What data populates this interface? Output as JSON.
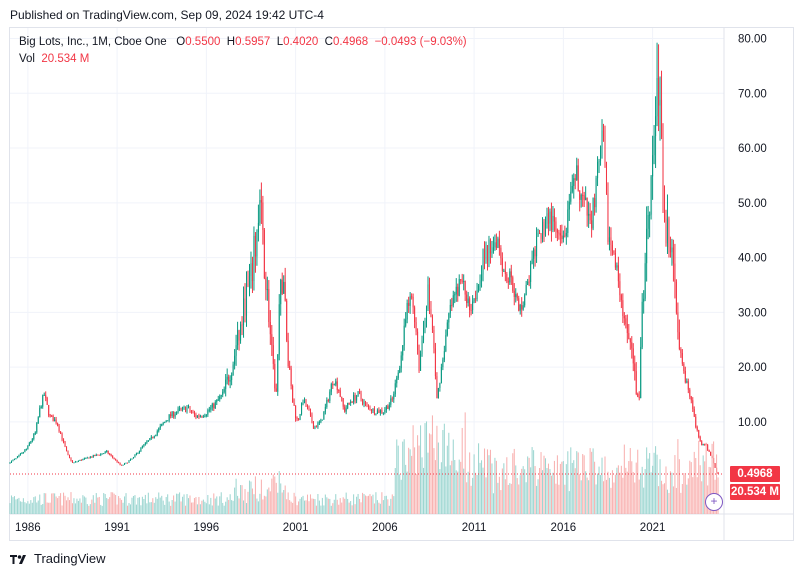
{
  "header": {
    "published": "Published on TradingView.com, Sep 09, 2024 19:42 UTC-4"
  },
  "legend": {
    "symbol": "Big Lots, Inc., 1M, Cboe One",
    "open_label": "O",
    "open": "0.5500",
    "high_label": "H",
    "high": "0.5957",
    "low_label": "L",
    "low": "0.4020",
    "close_label": "C",
    "close": "0.4968",
    "change": "−0.0493 (−9.03%)",
    "vol_label": "Vol",
    "vol_value": "20.534 M"
  },
  "badges": {
    "price": "0.4968",
    "volume": "20.534 M"
  },
  "footer": {
    "brand": "TradingView"
  },
  "colors": {
    "up": "#089981",
    "down": "#f23645",
    "vol_up": "#92d2cc",
    "vol_down": "#f7a9a7",
    "grid": "#f0f3fa"
  },
  "chart_data": {
    "type": "candlestick",
    "interval": "1M",
    "y_axis": {
      "position": "right",
      "min": 0,
      "max": 80,
      "ticks": [
        "10.00",
        "20.00",
        "30.00",
        "40.00",
        "50.00",
        "60.00",
        "70.00",
        "80.00"
      ],
      "tick_values": [
        10,
        20,
        30,
        40,
        50,
        60,
        70,
        80
      ]
    },
    "x_axis": {
      "min": 1985.0,
      "max": 2025.0,
      "ticks": [
        "1986",
        "1991",
        "1996",
        "2001",
        "2006",
        "2011",
        "2016",
        "2021"
      ],
      "tick_values": [
        1986,
        1991,
        1996,
        2001,
        2006,
        2011,
        2016,
        2021
      ]
    },
    "last_price": 0.4968,
    "price_path": [
      [
        1985.0,
        2.5
      ],
      [
        1985.5,
        3.5
      ],
      [
        1986.0,
        5.0
      ],
      [
        1986.5,
        8.0
      ],
      [
        1986.8,
        13.0
      ],
      [
        1987.0,
        15.0
      ],
      [
        1987.3,
        11.0
      ],
      [
        1987.7,
        10.0
      ],
      [
        1988.0,
        7.0
      ],
      [
        1988.3,
        4.0
      ],
      [
        1988.6,
        2.5
      ],
      [
        1989.0,
        3.0
      ],
      [
        1989.5,
        3.5
      ],
      [
        1990.0,
        4.0
      ],
      [
        1990.5,
        4.5
      ],
      [
        1991.0,
        3.0
      ],
      [
        1991.3,
        2.0
      ],
      [
        1991.6,
        2.5
      ],
      [
        1992.0,
        3.5
      ],
      [
        1992.5,
        5.5
      ],
      [
        1993.0,
        7.0
      ],
      [
        1993.5,
        9.0
      ],
      [
        1994.0,
        11.0
      ],
      [
        1994.5,
        12.0
      ],
      [
        1995.0,
        12.5
      ],
      [
        1995.5,
        11.0
      ],
      [
        1996.0,
        11.5
      ],
      [
        1996.5,
        13.0
      ],
      [
        1997.0,
        15.0
      ],
      [
        1997.5,
        20.0
      ],
      [
        1998.0,
        27.0
      ],
      [
        1998.3,
        33.0
      ],
      [
        1998.6,
        36.0
      ],
      [
        1998.8,
        42.0
      ],
      [
        1999.0,
        46.0
      ],
      [
        1999.1,
        50.0
      ],
      [
        1999.3,
        40.0
      ],
      [
        1999.5,
        33.0
      ],
      [
        1999.8,
        20.0
      ],
      [
        2000.0,
        15.0
      ],
      [
        2000.2,
        32.0
      ],
      [
        2000.4,
        38.0
      ],
      [
        2000.6,
        23.0
      ],
      [
        2000.9,
        14.0
      ],
      [
        2001.2,
        10.0
      ],
      [
        2001.5,
        14.0
      ],
      [
        2001.8,
        12.0
      ],
      [
        2002.1,
        9.0
      ],
      [
        2002.5,
        10.0
      ],
      [
        2002.8,
        13.0
      ],
      [
        2003.2,
        18.0
      ],
      [
        2003.5,
        16.0
      ],
      [
        2003.8,
        12.0
      ],
      [
        2004.2,
        14.0
      ],
      [
        2004.6,
        15.0
      ],
      [
        2005.0,
        13.0
      ],
      [
        2005.5,
        12.0
      ],
      [
        2006.0,
        12.0
      ],
      [
        2006.5,
        14.0
      ],
      [
        2007.0,
        22.0
      ],
      [
        2007.3,
        30.0
      ],
      [
        2007.6,
        33.0
      ],
      [
        2007.8,
        28.0
      ],
      [
        2008.0,
        20.0
      ],
      [
        2008.2,
        26.0
      ],
      [
        2008.5,
        34.0
      ],
      [
        2008.8,
        25.0
      ],
      [
        2009.0,
        14.0
      ],
      [
        2009.3,
        21.0
      ],
      [
        2009.7,
        30.0
      ],
      [
        2010.0,
        33.0
      ],
      [
        2010.4,
        36.0
      ],
      [
        2010.8,
        31.0
      ],
      [
        2011.2,
        34.0
      ],
      [
        2011.6,
        40.0
      ],
      [
        2012.0,
        42.0
      ],
      [
        2012.4,
        44.0
      ],
      [
        2012.8,
        37.0
      ],
      [
        2013.2,
        36.0
      ],
      [
        2013.6,
        30.0
      ],
      [
        2014.0,
        34.0
      ],
      [
        2014.4,
        40.0
      ],
      [
        2014.8,
        44.0
      ],
      [
        2015.2,
        48.0
      ],
      [
        2015.6,
        45.0
      ],
      [
        2016.0,
        42.0
      ],
      [
        2016.4,
        48.0
      ],
      [
        2016.8,
        55.0
      ],
      [
        2017.2,
        50.0
      ],
      [
        2017.6,
        46.0
      ],
      [
        2018.0,
        55.0
      ],
      [
        2018.3,
        62.0
      ],
      [
        2018.6,
        44.0
      ],
      [
        2018.9,
        40.0
      ],
      [
        2019.2,
        36.0
      ],
      [
        2019.5,
        28.0
      ],
      [
        2019.8,
        24.0
      ],
      [
        2020.1,
        18.0
      ],
      [
        2020.3,
        12.0
      ],
      [
        2020.5,
        30.0
      ],
      [
        2020.8,
        48.0
      ],
      [
        2021.0,
        55.0
      ],
      [
        2021.2,
        66.0
      ],
      [
        2021.4,
        72.0
      ],
      [
        2021.6,
        58.0
      ],
      [
        2021.8,
        48.0
      ],
      [
        2022.0,
        42.0
      ],
      [
        2022.3,
        36.0
      ],
      [
        2022.6,
        25.0
      ],
      [
        2022.9,
        18.0
      ],
      [
        2023.2,
        15.0
      ],
      [
        2023.5,
        9.0
      ],
      [
        2023.8,
        6.0
      ],
      [
        2024.1,
        5.5
      ],
      [
        2024.4,
        3.5
      ],
      [
        2024.7,
        0.5
      ]
    ]
  }
}
